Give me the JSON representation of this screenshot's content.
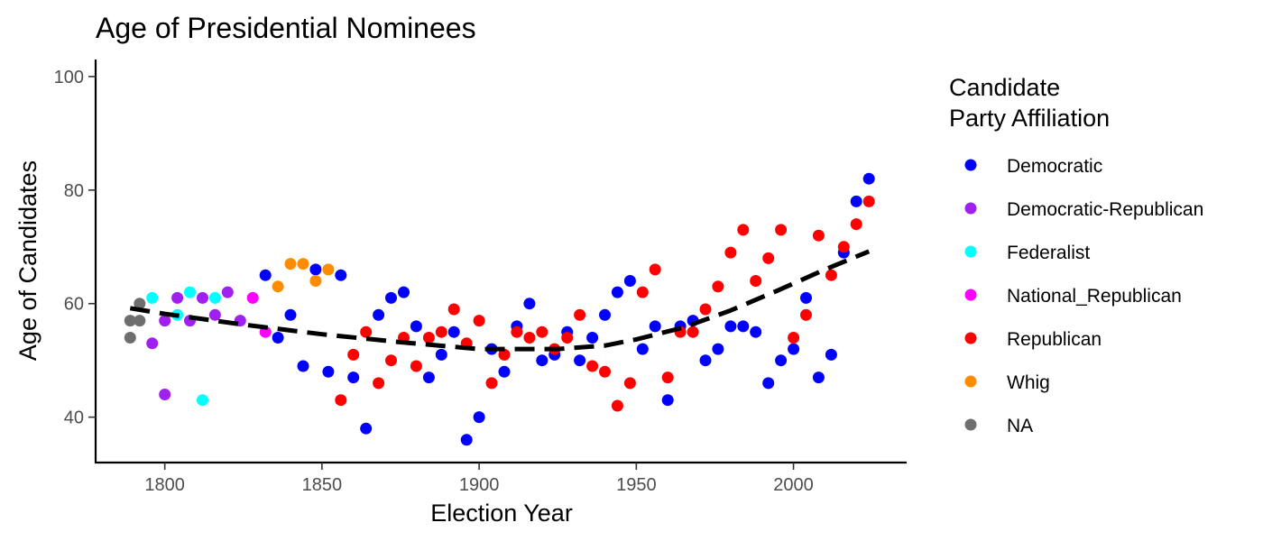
{
  "chart_data": {
    "type": "scatter",
    "title": "Age of Presidential Nominees",
    "xlabel": "Election Year",
    "ylabel": "Age of Candidates",
    "xlim": [
      1778,
      2036
    ],
    "ylim": [
      32,
      103
    ],
    "x_ticks": [
      1800,
      1850,
      1900,
      1950,
      2000
    ],
    "y_ticks": [
      40,
      60,
      80,
      100
    ],
    "grid": false,
    "legend": {
      "title_lines": [
        "Candidate",
        "Party Affiliation"
      ],
      "position": "right"
    },
    "series": [
      {
        "name": "Democratic",
        "color": "#0000ff",
        "points": [
          [
            1832,
            65
          ],
          [
            1836,
            54
          ],
          [
            1840,
            58
          ],
          [
            1844,
            49
          ],
          [
            1848,
            66
          ],
          [
            1852,
            48
          ],
          [
            1856,
            65
          ],
          [
            1860,
            47
          ],
          [
            1864,
            38
          ],
          [
            1868,
            58
          ],
          [
            1872,
            61
          ],
          [
            1876,
            62
          ],
          [
            1880,
            56
          ],
          [
            1884,
            47
          ],
          [
            1888,
            51
          ],
          [
            1892,
            55
          ],
          [
            1896,
            36
          ],
          [
            1900,
            40
          ],
          [
            1904,
            52
          ],
          [
            1908,
            48
          ],
          [
            1912,
            56
          ],
          [
            1916,
            60
          ],
          [
            1920,
            50
          ],
          [
            1924,
            51
          ],
          [
            1928,
            55
          ],
          [
            1932,
            50
          ],
          [
            1936,
            54
          ],
          [
            1940,
            58
          ],
          [
            1944,
            62
          ],
          [
            1948,
            64
          ],
          [
            1952,
            52
          ],
          [
            1956,
            56
          ],
          [
            1960,
            43
          ],
          [
            1964,
            56
          ],
          [
            1968,
            57
          ],
          [
            1972,
            50
          ],
          [
            1976,
            52
          ],
          [
            1980,
            56
          ],
          [
            1984,
            56
          ],
          [
            1988,
            55
          ],
          [
            1992,
            46
          ],
          [
            1996,
            50
          ],
          [
            2000,
            52
          ],
          [
            2004,
            61
          ],
          [
            2008,
            47
          ],
          [
            2012,
            51
          ],
          [
            2016,
            69
          ],
          [
            2020,
            78
          ],
          [
            2024,
            82
          ]
        ]
      },
      {
        "name": "Democratic-Republican",
        "color": "#a020f0",
        "points": [
          [
            1796,
            53
          ],
          [
            1800,
            57
          ],
          [
            1800,
            44
          ],
          [
            1804,
            61
          ],
          [
            1808,
            57
          ],
          [
            1812,
            61
          ],
          [
            1816,
            58
          ],
          [
            1820,
            62
          ],
          [
            1824,
            57
          ]
        ]
      },
      {
        "name": "Federalist",
        "color": "#00ffff",
        "points": [
          [
            1796,
            61
          ],
          [
            1804,
            58
          ],
          [
            1808,
            62
          ],
          [
            1812,
            43
          ],
          [
            1816,
            61
          ]
        ]
      },
      {
        "name": "National_Republican",
        "color": "#ff00ff",
        "points": [
          [
            1828,
            61
          ],
          [
            1832,
            55
          ]
        ]
      },
      {
        "name": "Republican",
        "color": "#ff0000",
        "points": [
          [
            1856,
            43
          ],
          [
            1860,
            51
          ],
          [
            1864,
            55
          ],
          [
            1868,
            46
          ],
          [
            1872,
            50
          ],
          [
            1876,
            54
          ],
          [
            1880,
            49
          ],
          [
            1884,
            54
          ],
          [
            1888,
            55
          ],
          [
            1892,
            59
          ],
          [
            1896,
            53
          ],
          [
            1900,
            57
          ],
          [
            1904,
            46
          ],
          [
            1908,
            51
          ],
          [
            1912,
            55
          ],
          [
            1916,
            54
          ],
          [
            1920,
            55
          ],
          [
            1924,
            52
          ],
          [
            1928,
            54
          ],
          [
            1932,
            58
          ],
          [
            1936,
            49
          ],
          [
            1940,
            48
          ],
          [
            1944,
            42
          ],
          [
            1948,
            46
          ],
          [
            1952,
            62
          ],
          [
            1956,
            66
          ],
          [
            1960,
            47
          ],
          [
            1964,
            55
          ],
          [
            1968,
            55
          ],
          [
            1972,
            59
          ],
          [
            1976,
            63
          ],
          [
            1980,
            69
          ],
          [
            1984,
            73
          ],
          [
            1988,
            64
          ],
          [
            1992,
            68
          ],
          [
            1996,
            73
          ],
          [
            2000,
            54
          ],
          [
            2004,
            58
          ],
          [
            2008,
            72
          ],
          [
            2012,
            65
          ],
          [
            2016,
            70
          ],
          [
            2020,
            74
          ],
          [
            2024,
            78
          ]
        ]
      },
      {
        "name": "Whig",
        "color": "#ff8c00",
        "points": [
          [
            1836,
            63
          ],
          [
            1840,
            67
          ],
          [
            1844,
            67
          ],
          [
            1848,
            64
          ],
          [
            1852,
            66
          ]
        ]
      },
      {
        "name": "NA",
        "color": "#6e6e6e",
        "points": [
          [
            1789,
            57
          ],
          [
            1789,
            54
          ],
          [
            1792,
            60
          ],
          [
            1792,
            57
          ]
        ]
      }
    ],
    "trend": {
      "style": "dashed",
      "color": "#000000",
      "points": [
        [
          1789,
          59.2
        ],
        [
          1800,
          58.2
        ],
        [
          1825,
          56.3
        ],
        [
          1850,
          54.6
        ],
        [
          1875,
          53.2
        ],
        [
          1900,
          52.0
        ],
        [
          1925,
          52.0
        ],
        [
          1940,
          52.6
        ],
        [
          1950,
          53.7
        ],
        [
          1965,
          55.8
        ],
        [
          1980,
          58.8
        ],
        [
          1995,
          62.3
        ],
        [
          2010,
          66.0
        ],
        [
          2024,
          69.2
        ]
      ]
    }
  }
}
